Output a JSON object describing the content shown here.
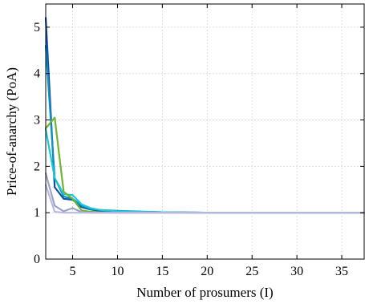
{
  "chart_data": {
    "type": "line",
    "title": "",
    "xlabel": "Number of prosumers (I)",
    "ylabel": "Price-of-anarchy (PoA)",
    "xlim": [
      2,
      37.5
    ],
    "ylim": [
      0,
      5.5
    ],
    "xticks": [
      5,
      10,
      15,
      20,
      25,
      30,
      35
    ],
    "yticks": [
      0,
      1,
      2,
      3,
      4,
      5
    ],
    "grid": true,
    "legend": "none",
    "series": [
      {
        "color": "#0b4fa3",
        "x": [
          2,
          3,
          4,
          5,
          6,
          7,
          8,
          10,
          15,
          20,
          25,
          30,
          37.5
        ],
        "y": [
          5.2,
          1.55,
          1.3,
          1.28,
          1.12,
          1.07,
          1.04,
          1.03,
          1.01,
          1.0,
          1.0,
          1.0,
          1.0
        ]
      },
      {
        "color": "#0c8fc3",
        "x": [
          2,
          3,
          4,
          5,
          6,
          7,
          8,
          10,
          15,
          20,
          25,
          30,
          37.5
        ],
        "y": [
          4.6,
          1.75,
          1.35,
          1.3,
          1.15,
          1.08,
          1.06,
          1.04,
          1.01,
          1.0,
          1.0,
          1.0,
          1.0
        ]
      },
      {
        "color": "#1fc7d9",
        "x": [
          2,
          3,
          4,
          5,
          6,
          7,
          8,
          10,
          15,
          20,
          25,
          30,
          37.5
        ],
        "y": [
          2.8,
          1.75,
          1.4,
          1.38,
          1.18,
          1.1,
          1.06,
          1.03,
          1.01,
          1.0,
          1.0,
          1.0,
          1.0
        ]
      },
      {
        "color": "#6fb52f",
        "x": [
          2,
          3,
          4,
          5,
          6,
          7,
          8,
          10,
          15,
          20,
          25,
          30,
          37.5
        ],
        "y": [
          2.82,
          3.05,
          1.45,
          1.3,
          1.05,
          1.02,
          1.01,
          1.0,
          1.0,
          1.0,
          1.0,
          1.0,
          1.0
        ]
      },
      {
        "color": "#9aa3cc",
        "x": [
          2,
          3,
          4,
          5,
          6,
          7,
          8,
          10,
          15,
          20,
          25,
          30,
          37.5
        ],
        "y": [
          1.85,
          1.15,
          1.03,
          1.1,
          1.01,
          1.0,
          1.0,
          1.0,
          1.0,
          1.0,
          1.0,
          1.0,
          1.0
        ]
      },
      {
        "color": "#b9b9df",
        "x": [
          2,
          3,
          4,
          5,
          6,
          7,
          8,
          10,
          15,
          20,
          25,
          30,
          37.5
        ],
        "y": [
          1.6,
          1.02,
          1.0,
          1.0,
          1.0,
          1.0,
          1.0,
          1.0,
          1.0,
          1.0,
          1.0,
          1.0,
          1.0
        ]
      }
    ]
  }
}
